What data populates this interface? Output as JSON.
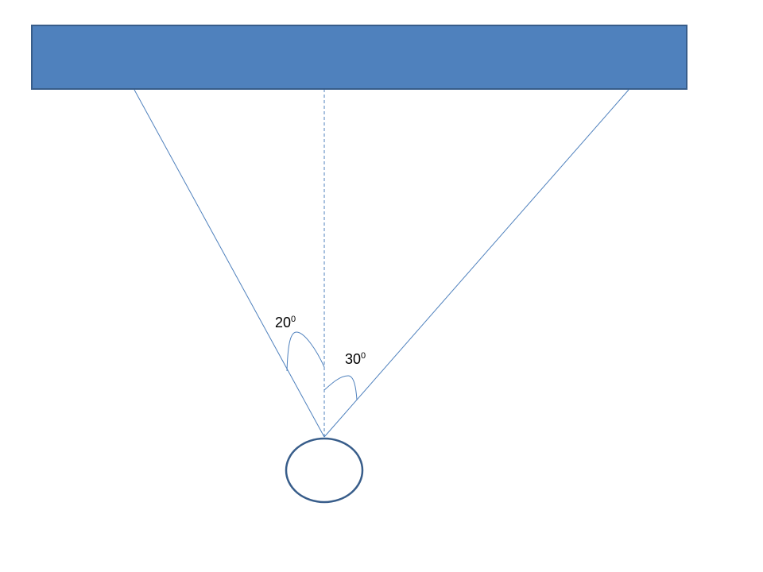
{
  "colors": {
    "bar_fill": "#4F81BD",
    "bar_stroke": "#385D8A",
    "line": "#4F81BD",
    "circle_stroke": "#385D8A"
  },
  "angles": [
    {
      "value": "20",
      "superscript": "0"
    },
    {
      "value": "30",
      "superscript": "0"
    }
  ]
}
